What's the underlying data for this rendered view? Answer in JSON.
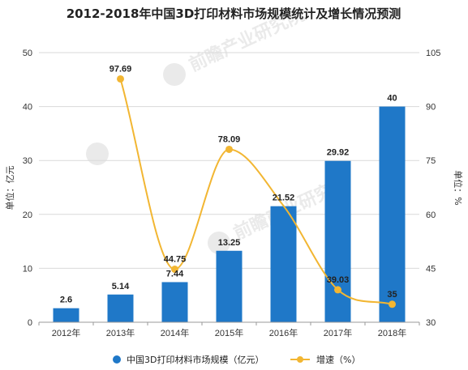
{
  "chart_data": {
    "type": "bar+line",
    "title": "2012-2018年中国3D打印材料市场规模统计及增长情况预测",
    "categories": [
      "2012年",
      "2013年",
      "2014年",
      "2015年",
      "2016年",
      "2017年",
      "2018年"
    ],
    "ylabel_left": "单位：亿元",
    "ylabel_right": "单位：%",
    "y_left": {
      "min": 0,
      "max": 50,
      "ticks": [
        "0",
        "10",
        "20",
        "30",
        "40",
        "50"
      ]
    },
    "y_right": {
      "min": 30,
      "max": 105,
      "ticks": [
        "30",
        "45",
        "60",
        "75",
        "90",
        "105"
      ]
    },
    "series": [
      {
        "name": "中国3D打印材料市场规模（亿元）",
        "type": "bar",
        "axis": "left",
        "color": "#1f78c8",
        "values": [
          2.6,
          5.14,
          7.44,
          13.25,
          21.52,
          29.92,
          40
        ],
        "labels": [
          "2.6",
          "5.14",
          "7.44",
          "13.25",
          "21.52",
          "29.92",
          "40"
        ]
      },
      {
        "name": "增速（%）",
        "type": "line",
        "axis": "right",
        "color": "#f2b632",
        "values": [
          null,
          97.69,
          44.75,
          78.09,
          62.4,
          39.03,
          35
        ],
        "labels": [
          "",
          "97.69",
          "44.75",
          "78.09",
          "",
          "39.03",
          "35"
        ]
      }
    ],
    "legend_position": "bottom",
    "grid": true,
    "watermark": "前瞻产业研究院"
  }
}
